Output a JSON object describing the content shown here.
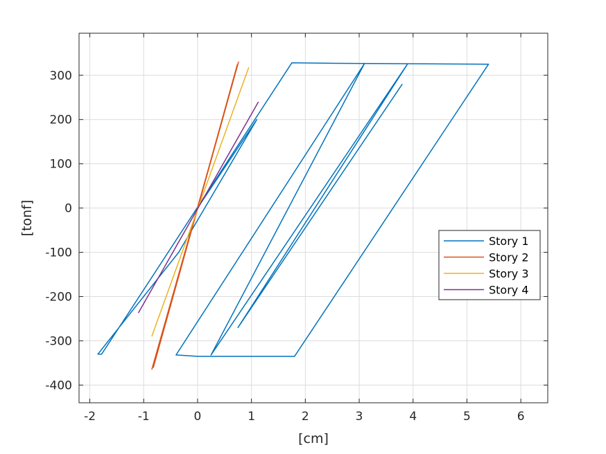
{
  "chart_data": {
    "type": "line",
    "title": "",
    "xlabel": "[cm]",
    "ylabel": "[tonf]",
    "xlim": [
      -2.2,
      6.5
    ],
    "ylim": [
      -440,
      395
    ],
    "xticks": [
      -2,
      -1,
      0,
      1,
      2,
      3,
      4,
      5,
      6
    ],
    "yticks": [
      300,
      200,
      100,
      0,
      -100,
      -200,
      -300,
      -400
    ],
    "xtick_labels": [
      "-2",
      "-1",
      "0",
      "1",
      "2",
      "3",
      "4",
      "5",
      "6"
    ],
    "ytick_labels": [
      "300",
      "200",
      "100",
      "0",
      "-100",
      "-200",
      "-300",
      "-400"
    ],
    "grid": true,
    "legend_position": "right",
    "series": [
      {
        "name": "Story 1",
        "color": "#0072BD",
        "points": [
          [
            0,
            0
          ],
          [
            1.1,
            200
          ],
          [
            -0.35,
            -100
          ],
          [
            -1.85,
            -330
          ],
          [
            -1.78,
            -330
          ],
          [
            1.75,
            328
          ],
          [
            2.6,
            327
          ],
          [
            5.4,
            325
          ],
          [
            1.8,
            -335
          ],
          [
            0,
            -335
          ],
          [
            -0.4,
            -332
          ],
          [
            3.1,
            327
          ],
          [
            0.25,
            -332
          ],
          [
            3.9,
            326
          ],
          [
            0.75,
            -270
          ],
          [
            3.8,
            280
          ]
        ]
      },
      {
        "name": "Story 2",
        "color": "#D95319",
        "points": [
          [
            -0.85,
            -365
          ],
          [
            0.76,
            330
          ],
          [
            -0.82,
            -360
          ],
          [
            0.74,
            325
          ]
        ]
      },
      {
        "name": "Story 3",
        "color": "#EDB120",
        "points": [
          [
            -0.85,
            -290
          ],
          [
            0.95,
            318
          ]
        ]
      },
      {
        "name": "Story 4",
        "color": "#7E2F8E",
        "points": [
          [
            -1.1,
            -237
          ],
          [
            1.13,
            240
          ]
        ]
      }
    ]
  }
}
